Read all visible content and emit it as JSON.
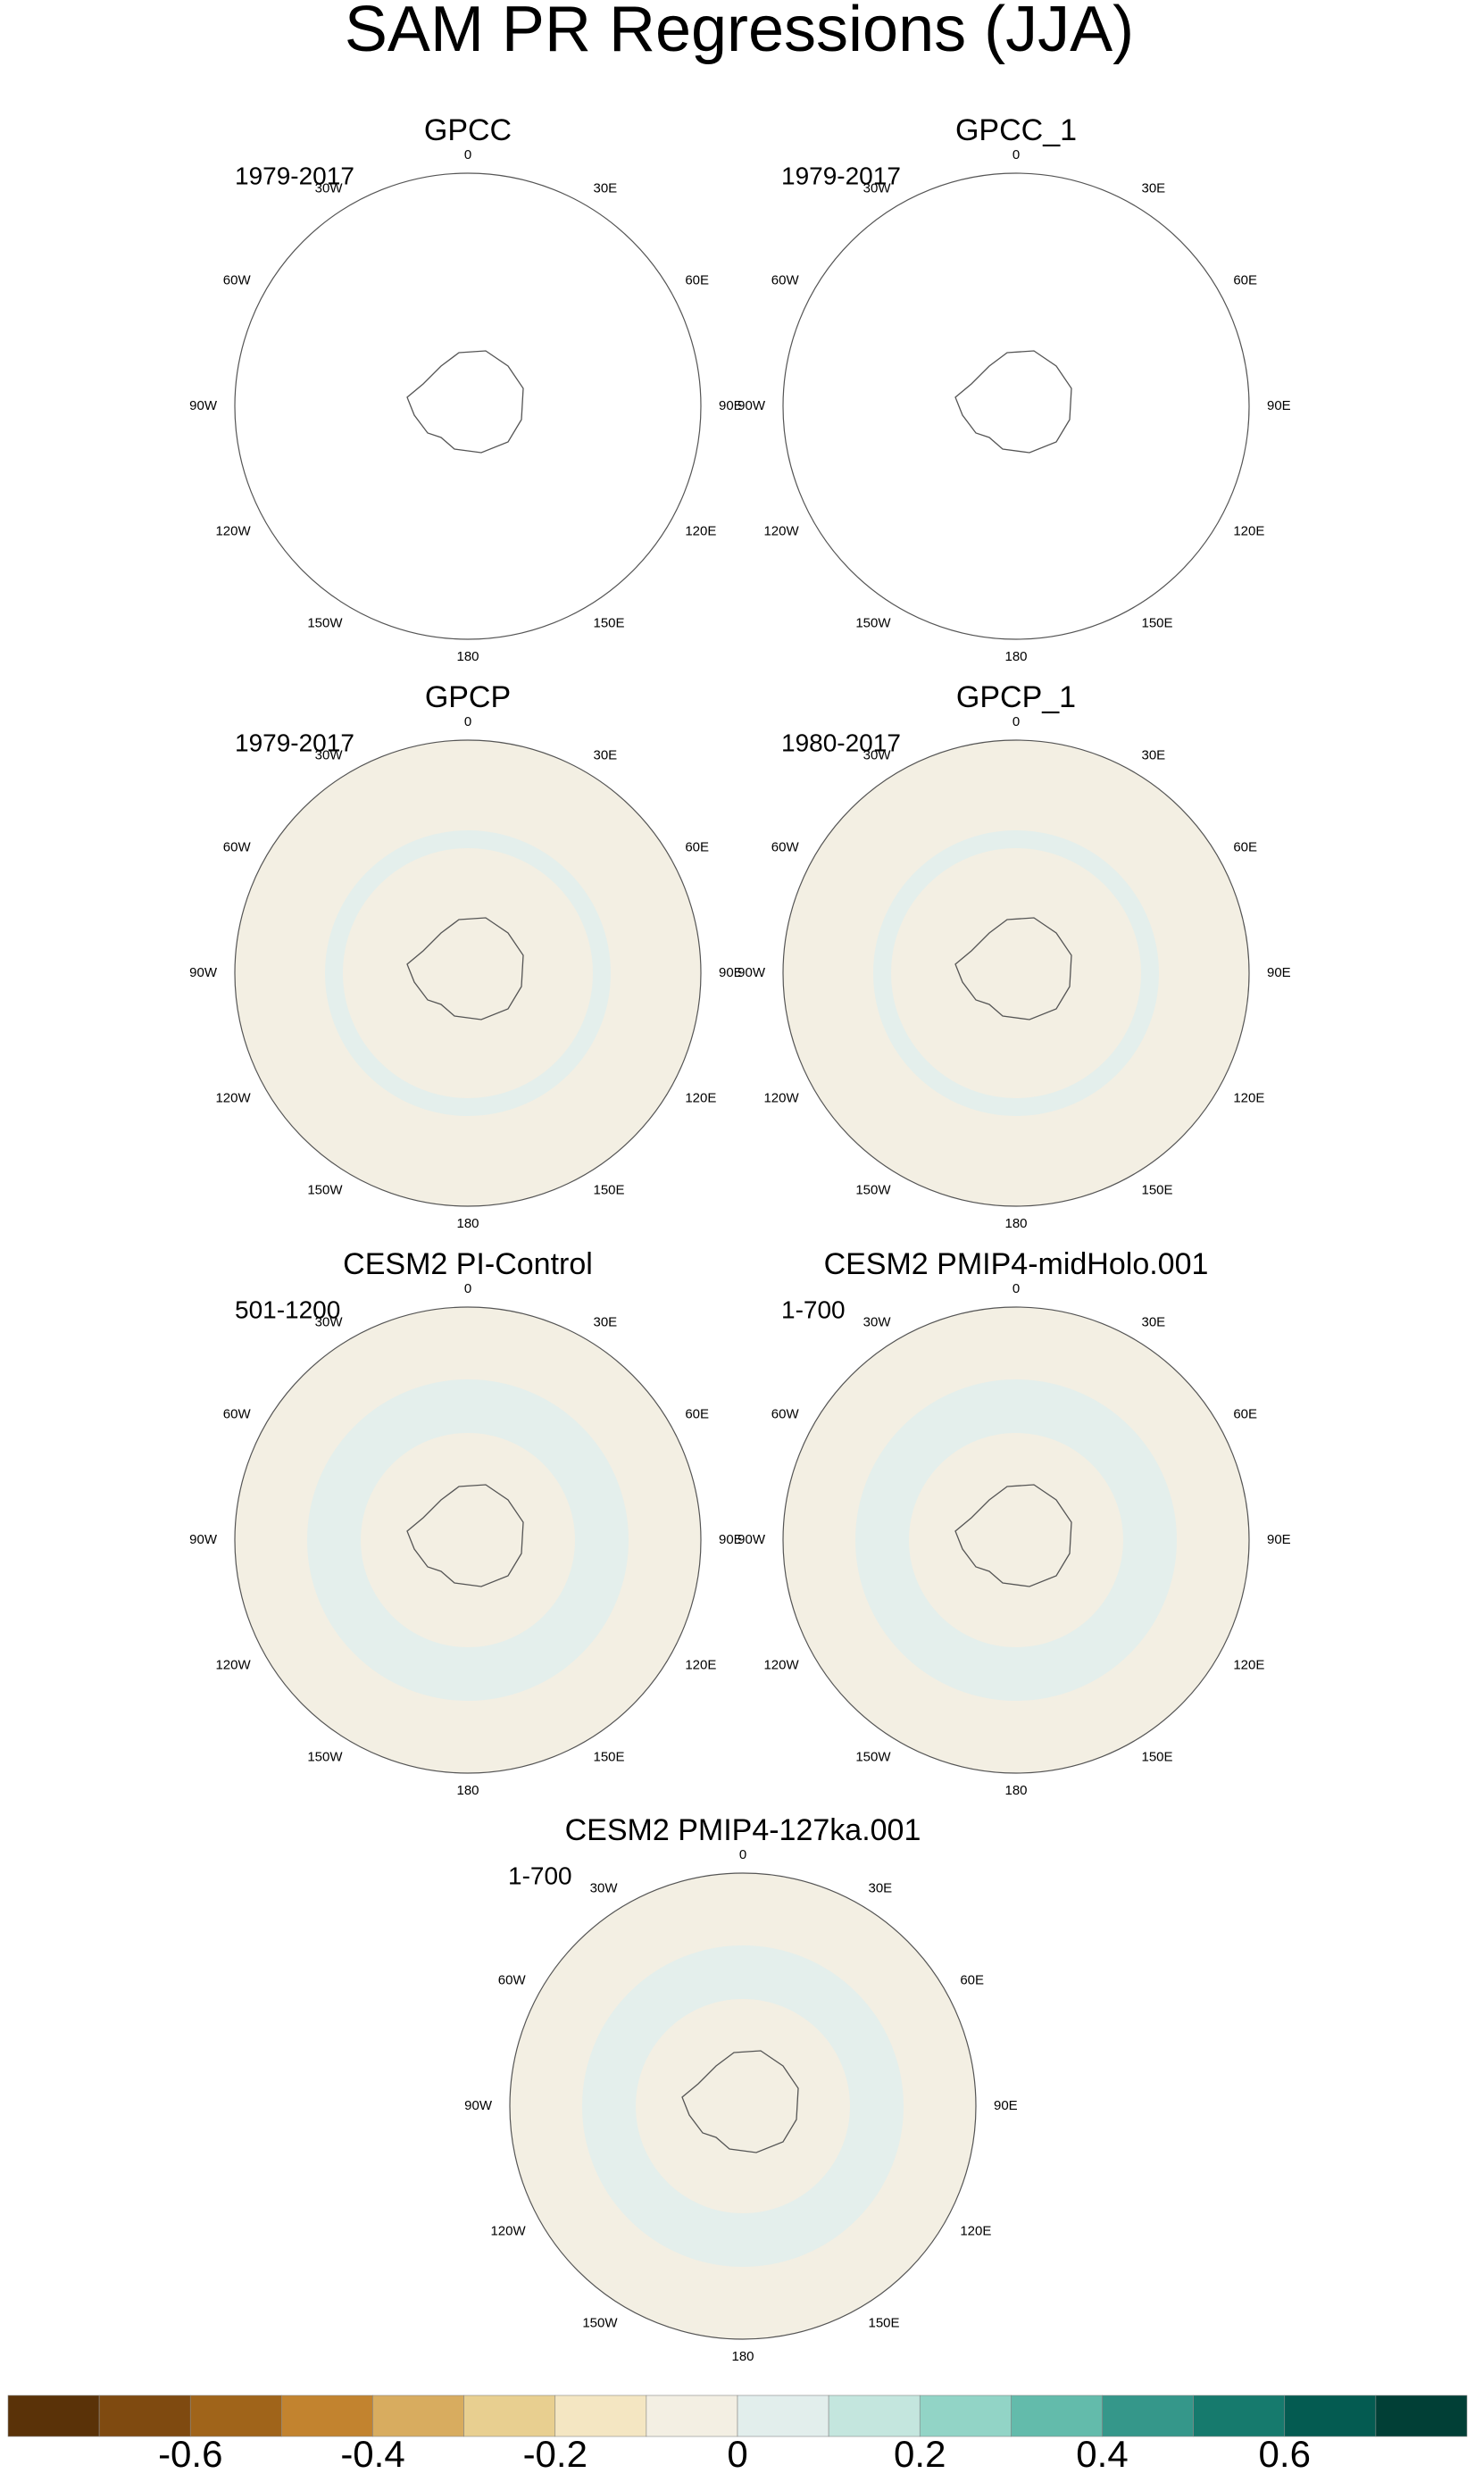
{
  "title": "SAM PR Regressions (JJA)",
  "panels": [
    {
      "title": "GPCC",
      "period": "1979-2017"
    },
    {
      "title": "GPCC_1",
      "period": "1979-2017"
    },
    {
      "title": "GPCP",
      "period": "1979-2017"
    },
    {
      "title": "GPCP_1",
      "period": "1980-2017"
    },
    {
      "title": "CESM2 PI-Control",
      "period": "501-1200"
    },
    {
      "title": "CESM2 PMIP4-midHolo.001",
      "period": "1-700"
    },
    {
      "title": "CESM2 PMIP4-127ka.001",
      "period": "1-700"
    }
  ],
  "longitude_labels": [
    "0",
    "30E",
    "60E",
    "90E",
    "120E",
    "150E",
    "180",
    "150W",
    "120W",
    "90W",
    "60W",
    "30W"
  ],
  "colorbar": {
    "levels": [
      -0.8,
      -0.7,
      -0.6,
      -0.5,
      -0.4,
      -0.3,
      -0.2,
      -0.1,
      0,
      0.1,
      0.2,
      0.3,
      0.4,
      0.5,
      0.6,
      0.7,
      0.8
    ],
    "colors": [
      "#5a3208",
      "#7f4a10",
      "#a0641a",
      "#c2832f",
      "#d8ac5f",
      "#e8cf90",
      "#f4e6c2",
      "#f3efe3",
      "#e2eeec",
      "#c4e6de",
      "#92d4c6",
      "#63bbab",
      "#35978a",
      "#167a6d",
      "#045b51",
      "#013f36"
    ],
    "ticks": [
      -0.6,
      -0.4,
      -0.2,
      0,
      0.2,
      0.4,
      0.6
    ]
  }
}
